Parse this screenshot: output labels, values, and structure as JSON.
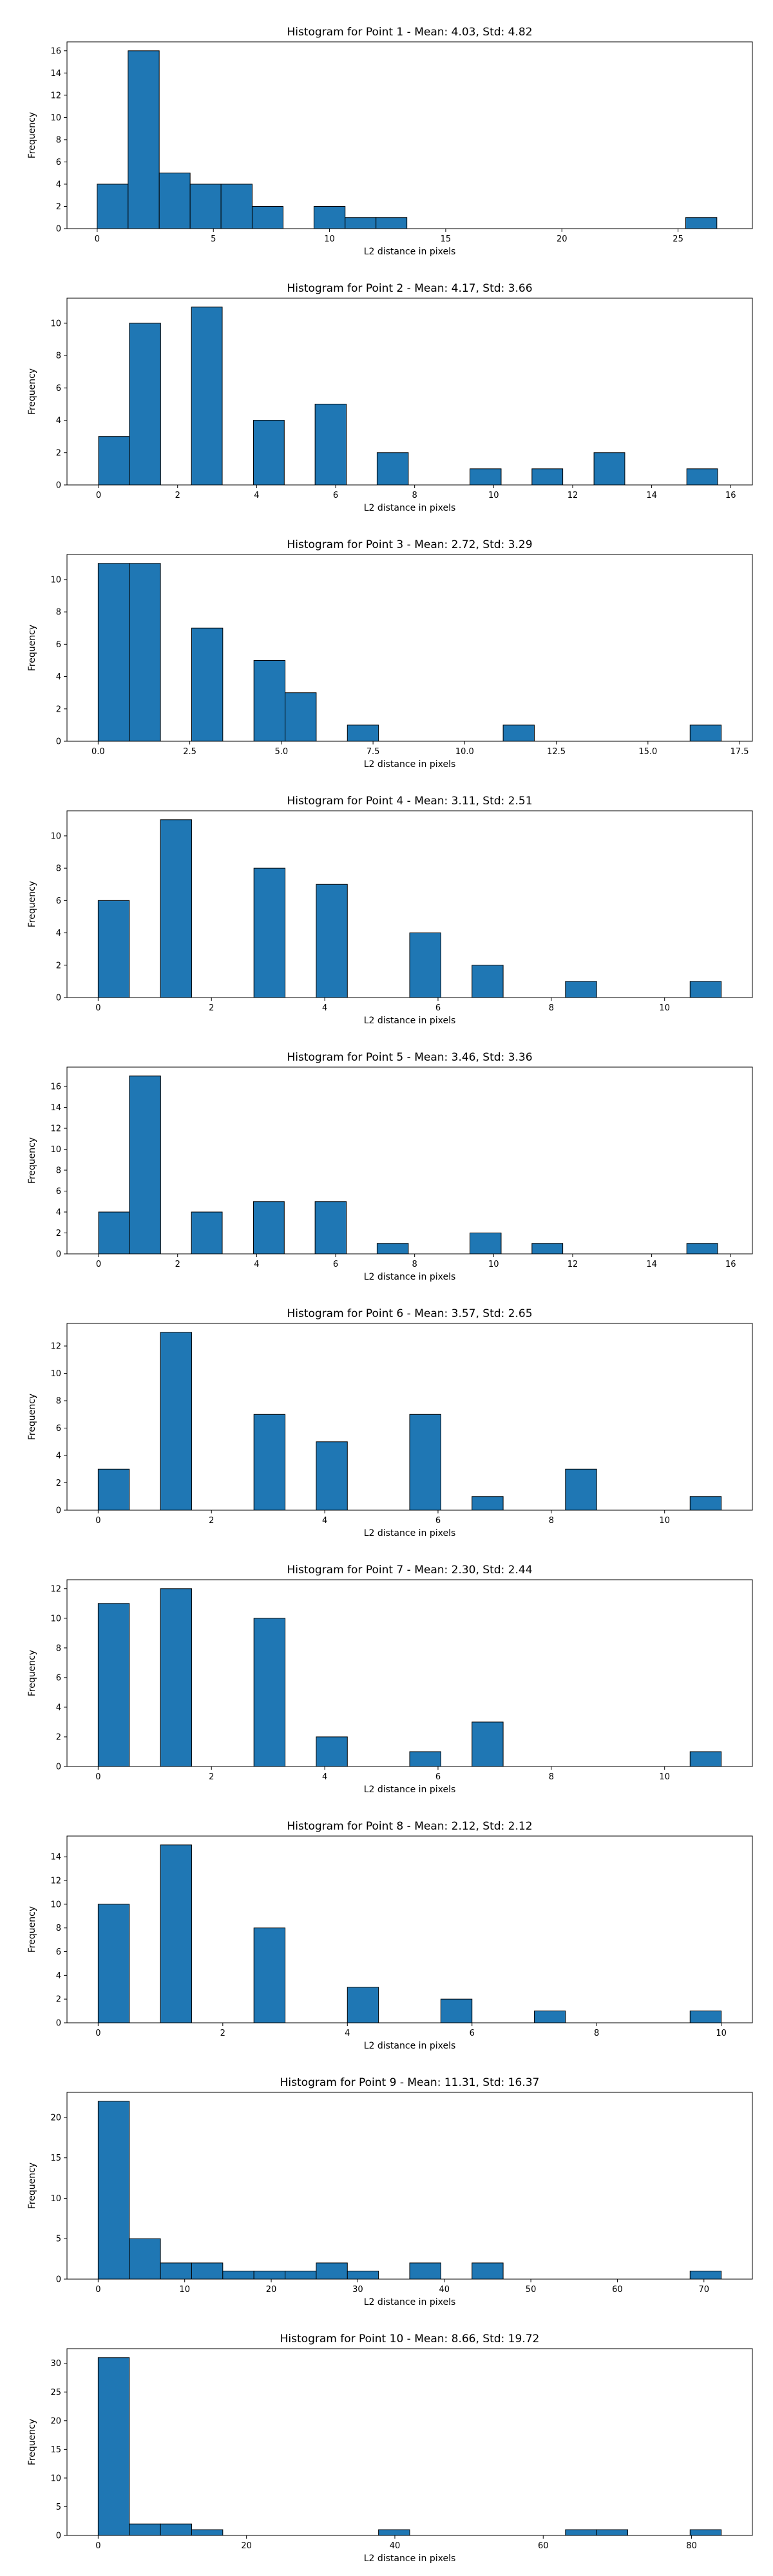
{
  "chart_data": [
    {
      "type": "bar",
      "title": "Histogram for Point 1 - Mean: 4.03, Std: 4.82",
      "xlabel": "L2 distance in pixels",
      "ylabel": "Frequency",
      "xlim": [
        -1.3,
        28.2
      ],
      "ylim": [
        0,
        16.8
      ],
      "xticks": [
        0,
        5,
        10,
        15,
        20,
        25
      ],
      "xtick_labels": [
        "0",
        "5",
        "10",
        "15",
        "20",
        "25"
      ],
      "yticks": [
        0,
        2,
        4,
        6,
        8,
        10,
        12,
        14,
        16
      ],
      "ytick_labels": [
        "0",
        "2",
        "4",
        "6",
        "8",
        "10",
        "12",
        "14",
        "16"
      ],
      "bins": [
        {
          "start": 0.0,
          "end": 1.33,
          "count": 4
        },
        {
          "start": 1.33,
          "end": 2.67,
          "count": 16
        },
        {
          "start": 2.67,
          "end": 4.0,
          "count": 5
        },
        {
          "start": 4.0,
          "end": 5.33,
          "count": 4
        },
        {
          "start": 5.33,
          "end": 6.67,
          "count": 4
        },
        {
          "start": 6.67,
          "end": 8.0,
          "count": 2
        },
        {
          "start": 9.33,
          "end": 10.67,
          "count": 2
        },
        {
          "start": 10.67,
          "end": 12.0,
          "count": 1
        },
        {
          "start": 12.0,
          "end": 13.33,
          "count": 1
        },
        {
          "start": 25.33,
          "end": 26.67,
          "count": 1
        }
      ]
    },
    {
      "type": "bar",
      "title": "Histogram for Point 2 - Mean: 4.17, Std: 3.66",
      "xlabel": "L2 distance in pixels",
      "ylabel": "Frequency",
      "xlim": [
        -0.8,
        16.55
      ],
      "ylim": [
        0,
        11.55
      ],
      "xticks": [
        0,
        2,
        4,
        6,
        8,
        10,
        12,
        14,
        16
      ],
      "xtick_labels": [
        "0",
        "2",
        "4",
        "6",
        "8",
        "10",
        "12",
        "14",
        "16"
      ],
      "yticks": [
        0,
        2,
        4,
        6,
        8,
        10
      ],
      "ytick_labels": [
        "0",
        "2",
        "4",
        "6",
        "8",
        "10"
      ],
      "bins": [
        {
          "start": 0.0,
          "end": 0.78,
          "count": 3
        },
        {
          "start": 0.78,
          "end": 1.57,
          "count": 10
        },
        {
          "start": 2.35,
          "end": 3.13,
          "count": 11
        },
        {
          "start": 3.92,
          "end": 4.7,
          "count": 4
        },
        {
          "start": 5.48,
          "end": 6.27,
          "count": 5
        },
        {
          "start": 7.05,
          "end": 7.84,
          "count": 2
        },
        {
          "start": 9.4,
          "end": 10.19,
          "count": 1
        },
        {
          "start": 10.97,
          "end": 11.75,
          "count": 1
        },
        {
          "start": 12.54,
          "end": 13.32,
          "count": 2
        },
        {
          "start": 14.89,
          "end": 15.67,
          "count": 1
        }
      ]
    },
    {
      "type": "bar",
      "title": "Histogram for Point 3 - Mean: 2.72, Std: 3.29",
      "xlabel": "L2 distance in pixels",
      "ylabel": "Frequency",
      "xlim": [
        -0.85,
        17.85
      ],
      "ylim": [
        0,
        11.55
      ],
      "xticks": [
        0,
        2.5,
        5,
        7.5,
        10,
        12.5,
        15,
        17.5
      ],
      "xtick_labels": [
        "0.0",
        "2.5",
        "5.0",
        "7.5",
        "10.0",
        "12.5",
        "15.0",
        "17.5"
      ],
      "yticks": [
        0,
        2,
        4,
        6,
        8,
        10
      ],
      "ytick_labels": [
        "0",
        "2",
        "4",
        "6",
        "8",
        "10"
      ],
      "bins": [
        {
          "start": 0.0,
          "end": 0.85,
          "count": 11
        },
        {
          "start": 0.85,
          "end": 1.7,
          "count": 11
        },
        {
          "start": 2.55,
          "end": 3.4,
          "count": 7
        },
        {
          "start": 4.25,
          "end": 5.1,
          "count": 5
        },
        {
          "start": 5.1,
          "end": 5.95,
          "count": 3
        },
        {
          "start": 6.8,
          "end": 7.65,
          "count": 1
        },
        {
          "start": 11.05,
          "end": 11.9,
          "count": 1
        },
        {
          "start": 16.15,
          "end": 17.0,
          "count": 1
        }
      ]
    },
    {
      "type": "bar",
      "title": "Histogram for Point 4 - Mean: 3.11, Std: 2.51",
      "xlabel": "L2 distance in pixels",
      "ylabel": "Frequency",
      "xlim": [
        -0.55,
        11.55
      ],
      "ylim": [
        0,
        11.55
      ],
      "xticks": [
        0,
        2,
        4,
        6,
        8,
        10
      ],
      "xtick_labels": [
        "0",
        "2",
        "4",
        "6",
        "8",
        "10"
      ],
      "yticks": [
        0,
        2,
        4,
        6,
        8,
        10
      ],
      "ytick_labels": [
        "0",
        "2",
        "4",
        "6",
        "8",
        "10"
      ],
      "bins": [
        {
          "start": 0.0,
          "end": 0.55,
          "count": 6
        },
        {
          "start": 1.1,
          "end": 1.65,
          "count": 11
        },
        {
          "start": 2.75,
          "end": 3.3,
          "count": 8
        },
        {
          "start": 3.85,
          "end": 4.4,
          "count": 7
        },
        {
          "start": 5.5,
          "end": 6.05,
          "count": 4
        },
        {
          "start": 6.6,
          "end": 7.15,
          "count": 2
        },
        {
          "start": 8.25,
          "end": 8.8,
          "count": 1
        },
        {
          "start": 10.45,
          "end": 11.0,
          "count": 1
        }
      ]
    },
    {
      "type": "bar",
      "title": "Histogram for Point 5 - Mean: 3.46, Std: 3.36",
      "xlabel": "L2 distance in pixels",
      "ylabel": "Frequency",
      "xlim": [
        -0.8,
        16.55
      ],
      "ylim": [
        0,
        17.85
      ],
      "xticks": [
        0,
        2,
        4,
        6,
        8,
        10,
        12,
        14,
        16
      ],
      "xtick_labels": [
        "0",
        "2",
        "4",
        "6",
        "8",
        "10",
        "12",
        "14",
        "16"
      ],
      "yticks": [
        0,
        2,
        4,
        6,
        8,
        10,
        12,
        14,
        16
      ],
      "ytick_labels": [
        "0",
        "2",
        "4",
        "6",
        "8",
        "10",
        "12",
        "14",
        "16"
      ],
      "bins": [
        {
          "start": 0.0,
          "end": 0.78,
          "count": 4
        },
        {
          "start": 0.78,
          "end": 1.57,
          "count": 17
        },
        {
          "start": 2.35,
          "end": 3.13,
          "count": 4
        },
        {
          "start": 3.92,
          "end": 4.7,
          "count": 5
        },
        {
          "start": 5.48,
          "end": 6.27,
          "count": 5
        },
        {
          "start": 7.05,
          "end": 7.84,
          "count": 1
        },
        {
          "start": 9.4,
          "end": 10.19,
          "count": 2
        },
        {
          "start": 10.97,
          "end": 11.75,
          "count": 1
        },
        {
          "start": 14.89,
          "end": 15.67,
          "count": 1
        }
      ]
    },
    {
      "type": "bar",
      "title": "Histogram for Point 6 - Mean: 3.57, Std: 2.65",
      "xlabel": "L2 distance in pixels",
      "ylabel": "Frequency",
      "xlim": [
        -0.55,
        11.55
      ],
      "ylim": [
        0,
        13.65
      ],
      "xticks": [
        0,
        2,
        4,
        6,
        8,
        10
      ],
      "xtick_labels": [
        "0",
        "2",
        "4",
        "6",
        "8",
        "10"
      ],
      "yticks": [
        0,
        2,
        4,
        6,
        8,
        10,
        12
      ],
      "ytick_labels": [
        "0",
        "2",
        "4",
        "6",
        "8",
        "10",
        "12"
      ],
      "bins": [
        {
          "start": 0.0,
          "end": 0.55,
          "count": 3
        },
        {
          "start": 1.1,
          "end": 1.65,
          "count": 13
        },
        {
          "start": 2.75,
          "end": 3.3,
          "count": 7
        },
        {
          "start": 3.85,
          "end": 4.4,
          "count": 5
        },
        {
          "start": 5.5,
          "end": 6.05,
          "count": 7
        },
        {
          "start": 6.6,
          "end": 7.15,
          "count": 1
        },
        {
          "start": 8.25,
          "end": 8.8,
          "count": 3
        },
        {
          "start": 10.45,
          "end": 11.0,
          "count": 1
        }
      ]
    },
    {
      "type": "bar",
      "title": "Histogram for Point 7 - Mean: 2.30, Std: 2.44",
      "xlabel": "L2 distance in pixels",
      "ylabel": "Frequency",
      "xlim": [
        -0.55,
        11.55
      ],
      "ylim": [
        0,
        12.6
      ],
      "xticks": [
        0,
        2,
        4,
        6,
        8,
        10
      ],
      "xtick_labels": [
        "0",
        "2",
        "4",
        "6",
        "8",
        "10"
      ],
      "yticks": [
        0,
        2,
        4,
        6,
        8,
        10,
        12
      ],
      "ytick_labels": [
        "0",
        "2",
        "4",
        "6",
        "8",
        "10",
        "12"
      ],
      "bins": [
        {
          "start": 0.0,
          "end": 0.55,
          "count": 11
        },
        {
          "start": 1.1,
          "end": 1.65,
          "count": 12
        },
        {
          "start": 2.75,
          "end": 3.3,
          "count": 10
        },
        {
          "start": 3.85,
          "end": 4.4,
          "count": 2
        },
        {
          "start": 5.5,
          "end": 6.05,
          "count": 1
        },
        {
          "start": 6.6,
          "end": 7.15,
          "count": 3
        },
        {
          "start": 10.45,
          "end": 11.0,
          "count": 1
        }
      ]
    },
    {
      "type": "bar",
      "title": "Histogram for Point 8 - Mean: 2.12, Std: 2.12",
      "xlabel": "L2 distance in pixels",
      "ylabel": "Frequency",
      "xlim": [
        -0.5,
        10.5
      ],
      "ylim": [
        0,
        15.75
      ],
      "xticks": [
        0,
        2,
        4,
        6,
        8,
        10
      ],
      "xtick_labels": [
        "0",
        "2",
        "4",
        "6",
        "8",
        "10"
      ],
      "yticks": [
        0,
        2,
        4,
        6,
        8,
        10,
        12,
        14
      ],
      "ytick_labels": [
        "0",
        "2",
        "4",
        "6",
        "8",
        "10",
        "12",
        "14"
      ],
      "bins": [
        {
          "start": 0.0,
          "end": 0.5,
          "count": 10
        },
        {
          "start": 1.0,
          "end": 1.5,
          "count": 15
        },
        {
          "start": 2.5,
          "end": 3.0,
          "count": 8
        },
        {
          "start": 4.0,
          "end": 4.5,
          "count": 3
        },
        {
          "start": 5.5,
          "end": 6.0,
          "count": 2
        },
        {
          "start": 7.0,
          "end": 7.5,
          "count": 1
        },
        {
          "start": 9.5,
          "end": 10.0,
          "count": 1
        }
      ]
    },
    {
      "type": "bar",
      "title": "Histogram for Point 9 - Mean: 11.31, Std: 16.37",
      "xlabel": "L2 distance in pixels",
      "ylabel": "Frequency",
      "xlim": [
        -3.6,
        75.6
      ],
      "ylim": [
        0,
        23.1
      ],
      "xticks": [
        0,
        10,
        20,
        30,
        40,
        50,
        60,
        70
      ],
      "xtick_labels": [
        "0",
        "10",
        "20",
        "30",
        "40",
        "50",
        "60",
        "70"
      ],
      "yticks": [
        0,
        5,
        10,
        15,
        20
      ],
      "ytick_labels": [
        "0",
        "5",
        "10",
        "15",
        "20"
      ],
      "bins": [
        {
          "start": 0.0,
          "end": 3.6,
          "count": 22
        },
        {
          "start": 3.6,
          "end": 7.2,
          "count": 5
        },
        {
          "start": 7.2,
          "end": 10.8,
          "count": 2
        },
        {
          "start": 10.8,
          "end": 14.4,
          "count": 2
        },
        {
          "start": 14.4,
          "end": 18.0,
          "count": 1
        },
        {
          "start": 18.0,
          "end": 21.6,
          "count": 1
        },
        {
          "start": 21.6,
          "end": 25.2,
          "count": 1
        },
        {
          "start": 25.2,
          "end": 28.8,
          "count": 2
        },
        {
          "start": 28.8,
          "end": 32.4,
          "count": 1
        },
        {
          "start": 36.0,
          "end": 39.6,
          "count": 2
        },
        {
          "start": 43.2,
          "end": 46.8,
          "count": 2
        },
        {
          "start": 68.4,
          "end": 72.0,
          "count": 1
        }
      ]
    },
    {
      "type": "bar",
      "title": "Histogram for Point 10 - Mean: 8.66, Std: 19.72",
      "xlabel": "L2 distance in pixels",
      "ylabel": "Frequency",
      "xlim": [
        -4.2,
        88.2
      ],
      "ylim": [
        0,
        32.55
      ],
      "xticks": [
        0,
        20,
        40,
        60,
        80
      ],
      "xtick_labels": [
        "0",
        "20",
        "40",
        "60",
        "80"
      ],
      "yticks": [
        0,
        5,
        10,
        15,
        20,
        25,
        30
      ],
      "ytick_labels": [
        "0",
        "5",
        "10",
        "15",
        "20",
        "25",
        "30"
      ],
      "bins": [
        {
          "start": 0.0,
          "end": 4.2,
          "count": 31
        },
        {
          "start": 4.2,
          "end": 8.4,
          "count": 2
        },
        {
          "start": 8.4,
          "end": 12.6,
          "count": 2
        },
        {
          "start": 12.6,
          "end": 16.8,
          "count": 1
        },
        {
          "start": 37.8,
          "end": 42.0,
          "count": 1
        },
        {
          "start": 63.0,
          "end": 67.2,
          "count": 1
        },
        {
          "start": 67.2,
          "end": 71.4,
          "count": 1
        },
        {
          "start": 79.8,
          "end": 84.0,
          "count": 1
        }
      ]
    }
  ]
}
